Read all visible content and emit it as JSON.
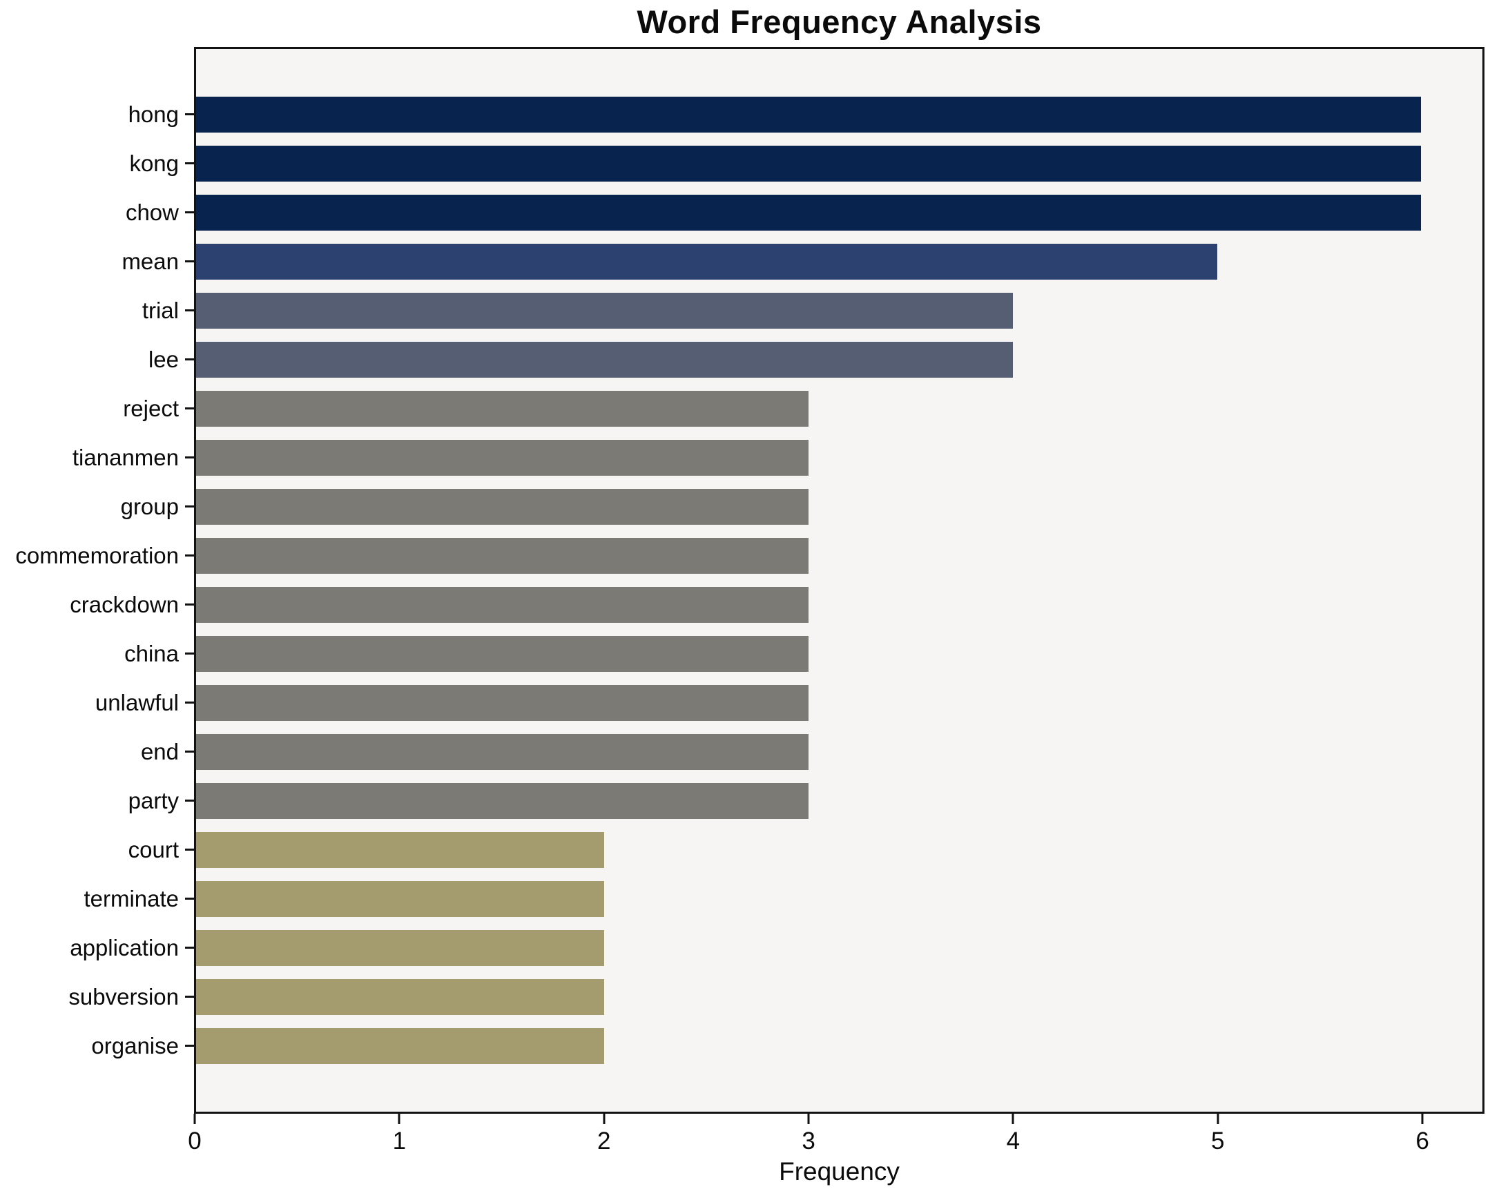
{
  "chart_data": {
    "type": "bar",
    "orientation": "horizontal",
    "title": "Word Frequency Analysis",
    "xlabel": "Frequency",
    "ylabel": "",
    "categories": [
      "hong",
      "kong",
      "chow",
      "mean",
      "trial",
      "lee",
      "reject",
      "tiananmen",
      "group",
      "commemoration",
      "crackdown",
      "china",
      "unlawful",
      "end",
      "party",
      "court",
      "terminate",
      "application",
      "subversion",
      "organise"
    ],
    "values": [
      6,
      6,
      6,
      5,
      4,
      4,
      3,
      3,
      3,
      3,
      3,
      3,
      3,
      3,
      3,
      2,
      2,
      2,
      2,
      2
    ],
    "bar_colors": [
      "#08234d",
      "#08234d",
      "#08234d",
      "#2d4170",
      "#565e73",
      "#565e73",
      "#7b7a74",
      "#7b7a74",
      "#7b7a74",
      "#7b7a74",
      "#7b7a74",
      "#7b7a74",
      "#7b7a74",
      "#7b7a74",
      "#7b7a74",
      "#a49b6f",
      "#a49b6f",
      "#a49b6f",
      "#a49b6f",
      "#a49b6f"
    ],
    "xlim": [
      0,
      6.3
    ],
    "xticks": [
      0,
      1,
      2,
      3,
      4,
      5,
      6
    ],
    "xtick_labels": [
      "0",
      "1",
      "2",
      "3",
      "4",
      "5",
      "6"
    ],
    "grid": false,
    "legend_position": "none"
  },
  "style": {
    "figure_bg": "#ffffff",
    "plot_bg": "#f6f5f4",
    "border_color": "#121212",
    "text_color": "#0b0b0b"
  }
}
